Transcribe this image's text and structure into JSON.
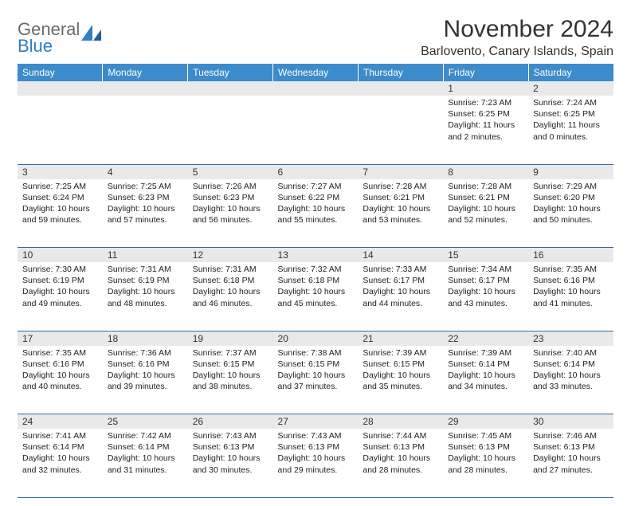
{
  "logo": {
    "general": "General",
    "blue": "Blue",
    "shape_color": "#2f7fc1"
  },
  "title": "November 2024",
  "location": "Barlovento, Canary Islands, Spain",
  "colors": {
    "header_bg": "#3c8bca",
    "header_text": "#ffffff",
    "daynum_bg": "#e9e9e9",
    "border": "#2d6da8",
    "body_text": "#222222"
  },
  "weekdays": [
    "Sunday",
    "Monday",
    "Tuesday",
    "Wednesday",
    "Thursday",
    "Friday",
    "Saturday"
  ],
  "weeks": [
    [
      null,
      null,
      null,
      null,
      null,
      {
        "n": "1",
        "sr": "Sunrise: 7:23 AM",
        "ss": "Sunset: 6:25 PM",
        "dl": "Daylight: 11 hours and 2 minutes."
      },
      {
        "n": "2",
        "sr": "Sunrise: 7:24 AM",
        "ss": "Sunset: 6:25 PM",
        "dl": "Daylight: 11 hours and 0 minutes."
      }
    ],
    [
      {
        "n": "3",
        "sr": "Sunrise: 7:25 AM",
        "ss": "Sunset: 6:24 PM",
        "dl": "Daylight: 10 hours and 59 minutes."
      },
      {
        "n": "4",
        "sr": "Sunrise: 7:25 AM",
        "ss": "Sunset: 6:23 PM",
        "dl": "Daylight: 10 hours and 57 minutes."
      },
      {
        "n": "5",
        "sr": "Sunrise: 7:26 AM",
        "ss": "Sunset: 6:23 PM",
        "dl": "Daylight: 10 hours and 56 minutes."
      },
      {
        "n": "6",
        "sr": "Sunrise: 7:27 AM",
        "ss": "Sunset: 6:22 PM",
        "dl": "Daylight: 10 hours and 55 minutes."
      },
      {
        "n": "7",
        "sr": "Sunrise: 7:28 AM",
        "ss": "Sunset: 6:21 PM",
        "dl": "Daylight: 10 hours and 53 minutes."
      },
      {
        "n": "8",
        "sr": "Sunrise: 7:28 AM",
        "ss": "Sunset: 6:21 PM",
        "dl": "Daylight: 10 hours and 52 minutes."
      },
      {
        "n": "9",
        "sr": "Sunrise: 7:29 AM",
        "ss": "Sunset: 6:20 PM",
        "dl": "Daylight: 10 hours and 50 minutes."
      }
    ],
    [
      {
        "n": "10",
        "sr": "Sunrise: 7:30 AM",
        "ss": "Sunset: 6:19 PM",
        "dl": "Daylight: 10 hours and 49 minutes."
      },
      {
        "n": "11",
        "sr": "Sunrise: 7:31 AM",
        "ss": "Sunset: 6:19 PM",
        "dl": "Daylight: 10 hours and 48 minutes."
      },
      {
        "n": "12",
        "sr": "Sunrise: 7:31 AM",
        "ss": "Sunset: 6:18 PM",
        "dl": "Daylight: 10 hours and 46 minutes."
      },
      {
        "n": "13",
        "sr": "Sunrise: 7:32 AM",
        "ss": "Sunset: 6:18 PM",
        "dl": "Daylight: 10 hours and 45 minutes."
      },
      {
        "n": "14",
        "sr": "Sunrise: 7:33 AM",
        "ss": "Sunset: 6:17 PM",
        "dl": "Daylight: 10 hours and 44 minutes."
      },
      {
        "n": "15",
        "sr": "Sunrise: 7:34 AM",
        "ss": "Sunset: 6:17 PM",
        "dl": "Daylight: 10 hours and 43 minutes."
      },
      {
        "n": "16",
        "sr": "Sunrise: 7:35 AM",
        "ss": "Sunset: 6:16 PM",
        "dl": "Daylight: 10 hours and 41 minutes."
      }
    ],
    [
      {
        "n": "17",
        "sr": "Sunrise: 7:35 AM",
        "ss": "Sunset: 6:16 PM",
        "dl": "Daylight: 10 hours and 40 minutes."
      },
      {
        "n": "18",
        "sr": "Sunrise: 7:36 AM",
        "ss": "Sunset: 6:16 PM",
        "dl": "Daylight: 10 hours and 39 minutes."
      },
      {
        "n": "19",
        "sr": "Sunrise: 7:37 AM",
        "ss": "Sunset: 6:15 PM",
        "dl": "Daylight: 10 hours and 38 minutes."
      },
      {
        "n": "20",
        "sr": "Sunrise: 7:38 AM",
        "ss": "Sunset: 6:15 PM",
        "dl": "Daylight: 10 hours and 37 minutes."
      },
      {
        "n": "21",
        "sr": "Sunrise: 7:39 AM",
        "ss": "Sunset: 6:15 PM",
        "dl": "Daylight: 10 hours and 35 minutes."
      },
      {
        "n": "22",
        "sr": "Sunrise: 7:39 AM",
        "ss": "Sunset: 6:14 PM",
        "dl": "Daylight: 10 hours and 34 minutes."
      },
      {
        "n": "23",
        "sr": "Sunrise: 7:40 AM",
        "ss": "Sunset: 6:14 PM",
        "dl": "Daylight: 10 hours and 33 minutes."
      }
    ],
    [
      {
        "n": "24",
        "sr": "Sunrise: 7:41 AM",
        "ss": "Sunset: 6:14 PM",
        "dl": "Daylight: 10 hours and 32 minutes."
      },
      {
        "n": "25",
        "sr": "Sunrise: 7:42 AM",
        "ss": "Sunset: 6:14 PM",
        "dl": "Daylight: 10 hours and 31 minutes."
      },
      {
        "n": "26",
        "sr": "Sunrise: 7:43 AM",
        "ss": "Sunset: 6:13 PM",
        "dl": "Daylight: 10 hours and 30 minutes."
      },
      {
        "n": "27",
        "sr": "Sunrise: 7:43 AM",
        "ss": "Sunset: 6:13 PM",
        "dl": "Daylight: 10 hours and 29 minutes."
      },
      {
        "n": "28",
        "sr": "Sunrise: 7:44 AM",
        "ss": "Sunset: 6:13 PM",
        "dl": "Daylight: 10 hours and 28 minutes."
      },
      {
        "n": "29",
        "sr": "Sunrise: 7:45 AM",
        "ss": "Sunset: 6:13 PM",
        "dl": "Daylight: 10 hours and 28 minutes."
      },
      {
        "n": "30",
        "sr": "Sunrise: 7:46 AM",
        "ss": "Sunset: 6:13 PM",
        "dl": "Daylight: 10 hours and 27 minutes."
      }
    ]
  ]
}
